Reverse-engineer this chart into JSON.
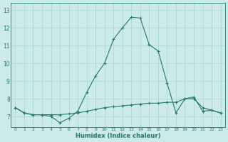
{
  "x": [
    0,
    1,
    2,
    3,
    4,
    5,
    6,
    7,
    8,
    9,
    10,
    11,
    12,
    13,
    14,
    15,
    16,
    17,
    18,
    19,
    20,
    21,
    22,
    23
  ],
  "line1": [
    7.5,
    7.2,
    7.1,
    7.1,
    7.0,
    6.65,
    6.9,
    7.3,
    8.35,
    9.3,
    10.0,
    11.35,
    12.0,
    12.6,
    12.55,
    11.05,
    10.7,
    8.9,
    7.2,
    8.0,
    8.1,
    7.3,
    7.35,
    7.2
  ],
  "line2": [
    7.5,
    7.2,
    7.1,
    7.1,
    7.1,
    7.1,
    7.15,
    7.2,
    7.3,
    7.4,
    7.5,
    7.55,
    7.6,
    7.65,
    7.7,
    7.75,
    7.75,
    7.8,
    7.8,
    8.0,
    8.0,
    7.5,
    7.35,
    7.2
  ],
  "xlabel": "Humidex (Indice chaleur)",
  "line_color": "#1e7a6e",
  "bg_color": "#cceae8",
  "grid_color": "#aad4d0",
  "ylim": [
    6.4,
    13.4
  ],
  "xlim": [
    -0.5,
    23.5
  ],
  "yticks": [
    7,
    8,
    9,
    10,
    11,
    12,
    13
  ],
  "xticks": [
    0,
    1,
    2,
    3,
    4,
    5,
    6,
    7,
    8,
    9,
    10,
    11,
    12,
    13,
    14,
    15,
    16,
    17,
    18,
    19,
    20,
    21,
    22,
    23
  ]
}
